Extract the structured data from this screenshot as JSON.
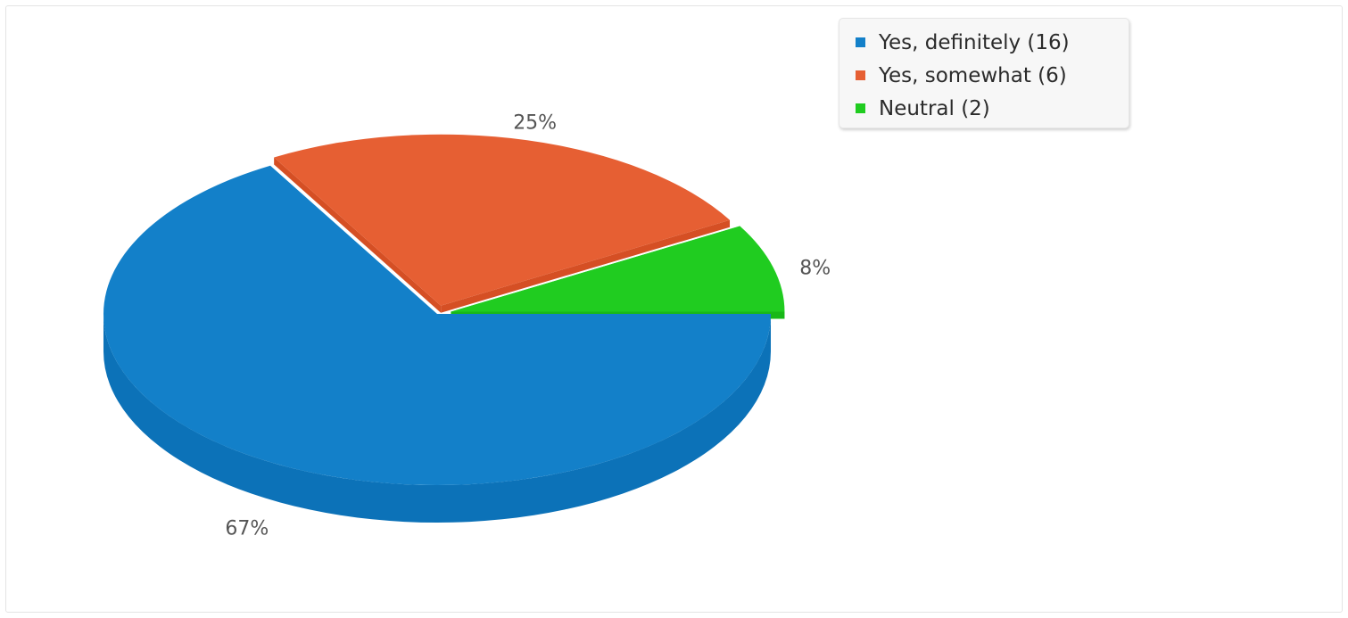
{
  "chart_data": {
    "type": "pie",
    "variant": "3d",
    "slices": [
      {
        "label": "Yes, definitely",
        "count": 16,
        "percent": 67,
        "percent_label": "67%",
        "legend_label": "Yes, definitely (16)",
        "color": "#1380c9",
        "side_color": "#0c72b8",
        "exploded": false
      },
      {
        "label": "Yes, somewhat",
        "count": 6,
        "percent": 25,
        "percent_label": "25%",
        "legend_label": "Yes, somewhat (6)",
        "color": "#e65f33",
        "side_color": "#d54f24",
        "exploded": true
      },
      {
        "label": "Neutral",
        "count": 2,
        "percent": 8,
        "percent_label": "8%",
        "legend_label": "Neutral (2)",
        "color": "#20cc20",
        "side_color": "#18b818",
        "exploded": true
      }
    ],
    "legend_position": "top-right"
  }
}
